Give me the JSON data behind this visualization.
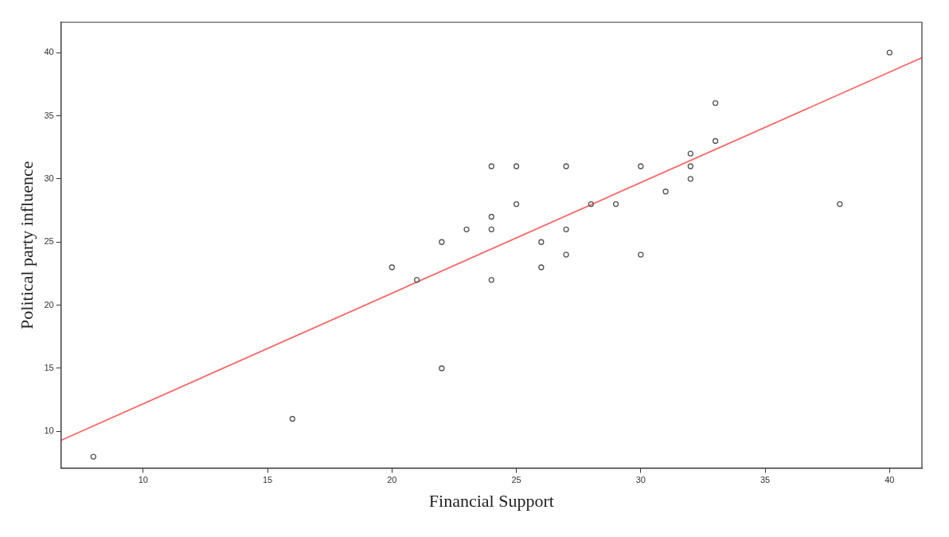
{
  "chart_data": {
    "type": "scatter",
    "xlabel": "Financial Support",
    "ylabel": "Political party influence",
    "xlim": [
      6.7,
      41.3
    ],
    "ylim": [
      7.1,
      42.4
    ],
    "xticks": [
      10,
      15,
      20,
      25,
      30,
      35,
      40
    ],
    "yticks": [
      10,
      15,
      20,
      25,
      30,
      35,
      40
    ],
    "grid": false,
    "legend": false,
    "marker": "circle",
    "series": [
      {
        "color": "#555555",
        "x": [
          8,
          16,
          20,
          21,
          22,
          22,
          23,
          24,
          24,
          24,
          24,
          25,
          25,
          26,
          26,
          27,
          27,
          27,
          28,
          29,
          30,
          30,
          31,
          32,
          32,
          32,
          33,
          33,
          38,
          40
        ],
        "values": [
          8,
          11,
          23,
          22,
          25,
          15,
          26,
          31,
          27,
          26,
          22,
          31,
          28,
          25,
          23,
          31,
          26,
          24,
          28,
          28,
          31,
          24,
          29,
          32,
          31,
          30,
          36,
          33,
          28,
          40
        ]
      },
      {
        "type": "line",
        "color": "#ff6666",
        "marker": "none",
        "x": [
          6.7,
          41.3
        ],
        "values": [
          9.3,
          39.6
        ]
      }
    ]
  }
}
